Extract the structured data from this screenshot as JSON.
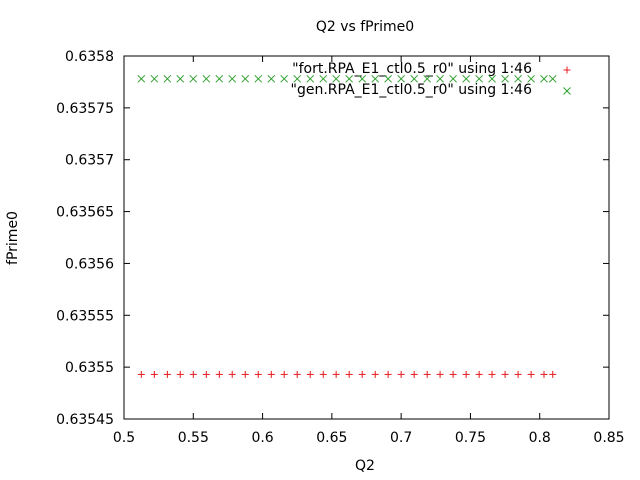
{
  "chart_data": {
    "type": "scatter",
    "title": "Q2 vs fPrime0",
    "xlabel": "Q2",
    "ylabel": "fPrime0",
    "xlim": [
      0.5,
      0.85
    ],
    "ylim": [
      0.63545,
      0.6358
    ],
    "xticks": [
      "0.5",
      "0.55",
      "0.6",
      "0.65",
      "0.7",
      "0.75",
      "0.8",
      "0.85"
    ],
    "yticks": [
      "0.63545",
      "0.6355",
      "0.63555",
      "0.6356",
      "0.63565",
      "0.6357",
      "0.63575",
      "0.6358"
    ],
    "grid": false,
    "legend_position": "top-right",
    "series": [
      {
        "name": "\"fort.RPA_E1_ctl0.5_r0\" using 1:46",
        "marker": "plus",
        "color": "#e41a1c",
        "x": [
          0.5125,
          0.5219,
          0.5313,
          0.5406,
          0.55,
          0.5594,
          0.5688,
          0.5781,
          0.5875,
          0.5969,
          0.6063,
          0.6156,
          0.625,
          0.6344,
          0.6438,
          0.6531,
          0.6625,
          0.6719,
          0.6813,
          0.6906,
          0.7,
          0.7094,
          0.7188,
          0.7281,
          0.7375,
          0.7469,
          0.7563,
          0.7656,
          0.775,
          0.7844,
          0.7938,
          0.8031,
          0.8094
        ],
        "y": [
          0.635493,
          0.635493,
          0.635493,
          0.635493,
          0.635493,
          0.635493,
          0.635493,
          0.635493,
          0.635493,
          0.635493,
          0.635493,
          0.635493,
          0.635493,
          0.635493,
          0.635493,
          0.635493,
          0.635493,
          0.635493,
          0.635493,
          0.635493,
          0.635493,
          0.635493,
          0.635493,
          0.635493,
          0.635493,
          0.635493,
          0.635493,
          0.635493,
          0.635493,
          0.635493,
          0.635493,
          0.635493,
          0.635493
        ]
      },
      {
        "name": "\"gen.RPA_E1_ctl0.5_r0\" using 1:46",
        "marker": "cross",
        "color": "#2ca02c",
        "x": [
          0.5125,
          0.5219,
          0.5313,
          0.5406,
          0.55,
          0.5594,
          0.5688,
          0.5781,
          0.5875,
          0.5969,
          0.6063,
          0.6156,
          0.625,
          0.6344,
          0.6438,
          0.6531,
          0.6625,
          0.6719,
          0.6813,
          0.6906,
          0.7,
          0.7094,
          0.7188,
          0.7281,
          0.7375,
          0.7469,
          0.7563,
          0.7656,
          0.775,
          0.7844,
          0.7938,
          0.8031,
          0.8094
        ],
        "y": [
          0.635778,
          0.635778,
          0.635778,
          0.635778,
          0.635778,
          0.635778,
          0.635778,
          0.635778,
          0.635778,
          0.635778,
          0.635778,
          0.635778,
          0.635778,
          0.635778,
          0.635778,
          0.635778,
          0.635778,
          0.635778,
          0.635778,
          0.635778,
          0.635778,
          0.635778,
          0.635778,
          0.635778,
          0.635778,
          0.635778,
          0.635778,
          0.635778,
          0.635778,
          0.635778,
          0.635778,
          0.635778,
          0.635778
        ]
      }
    ]
  }
}
